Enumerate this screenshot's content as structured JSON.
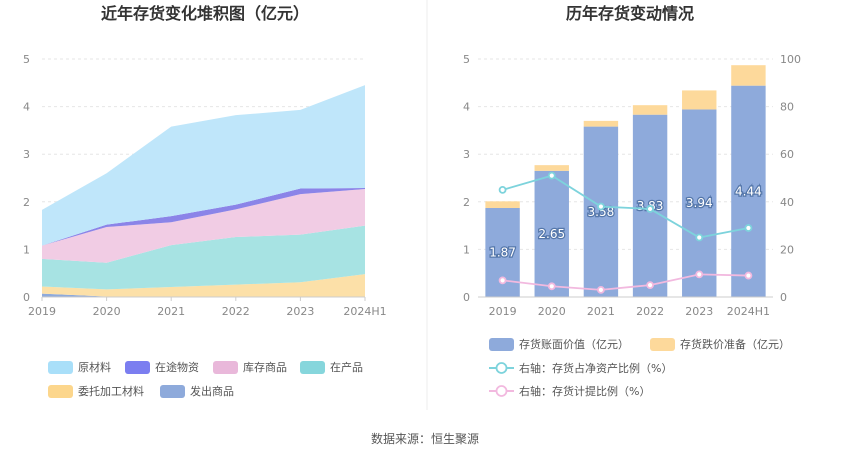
{
  "chart_data": [
    {
      "type": "area",
      "title": "近年存货变化堆积图（亿元）",
      "categories": [
        "2019",
        "2020",
        "2021",
        "2022",
        "2023",
        "2024H1"
      ],
      "ylim": [
        0,
        5
      ],
      "yticks": [
        "0",
        "1",
        "2",
        "3",
        "4",
        "5"
      ],
      "stacked": true,
      "series": [
        {
          "name": "发出商品",
          "color": "#8eaadb",
          "values": [
            0.07,
            0.01,
            0.01,
            0.01,
            0.01,
            0.01
          ]
        },
        {
          "name": "委托加工材料",
          "color": "#fce0a8",
          "values": [
            0.15,
            0.15,
            0.2,
            0.25,
            0.3,
            0.47
          ]
        },
        {
          "name": "在产品",
          "color": "#a7e3e3",
          "values": [
            0.58,
            0.56,
            0.88,
            1.0,
            1.0,
            1.02
          ]
        },
        {
          "name": "库存商品",
          "color": "#f1cce4",
          "values": [
            0.28,
            0.75,
            0.48,
            0.58,
            0.85,
            0.77
          ]
        },
        {
          "name": "在途物资",
          "color": "#8b84e8",
          "values": [
            0.0,
            0.05,
            0.13,
            0.1,
            0.12,
            0.02
          ]
        },
        {
          "name": "原材料",
          "color": "#bfe6fa",
          "values": [
            0.75,
            1.08,
            1.88,
            1.88,
            1.65,
            2.16
          ]
        }
      ],
      "legend_order": [
        "原材料",
        "在途物资",
        "库存商品",
        "在产品",
        "委托加工材料",
        "发出商品"
      ],
      "legend_colors": {
        "原材料": "#a9dff9",
        "在途物资": "#7b7ef0",
        "库存商品": "#e9b8da",
        "在产品": "#86d6dc",
        "委托加工材料": "#fcd68c",
        "发出商品": "#8eaadb"
      }
    },
    {
      "type": "bar",
      "title": "历年存货变动情况",
      "categories": [
        "2019",
        "2020",
        "2021",
        "2022",
        "2023",
        "2024H1"
      ],
      "ylim": [
        0,
        5
      ],
      "yticks": [
        "0",
        "1",
        "2",
        "3",
        "4",
        "5"
      ],
      "y2lim": [
        0,
        100
      ],
      "y2ticks": [
        "0",
        "20",
        "40",
        "60",
        "80",
        "100"
      ],
      "stacked_bars": [
        {
          "name": "存货账面价值（亿元）",
          "color": "#8eaadb",
          "values": [
            1.87,
            2.65,
            3.58,
            3.83,
            3.94,
            4.44
          ],
          "labels": [
            "1.87",
            "2.65",
            "3.58",
            "3.83",
            "3.94",
            "4.44"
          ]
        },
        {
          "name": "存货跌价准备（亿元）",
          "color": "#fdd99b",
          "values": [
            0.14,
            0.12,
            0.12,
            0.2,
            0.4,
            0.43
          ]
        }
      ],
      "lines": [
        {
          "name": "右轴：存货占净资产比例（%）",
          "color": "#7dd3dc",
          "values": [
            45,
            51,
            38,
            37,
            25,
            29
          ]
        },
        {
          "name": "右轴：存货计提比例（%）",
          "color": "#f2b9df",
          "values": [
            7,
            4.5,
            3,
            5,
            9.5,
            9
          ]
        }
      ]
    }
  ],
  "source": "数据来源：恒生聚源"
}
